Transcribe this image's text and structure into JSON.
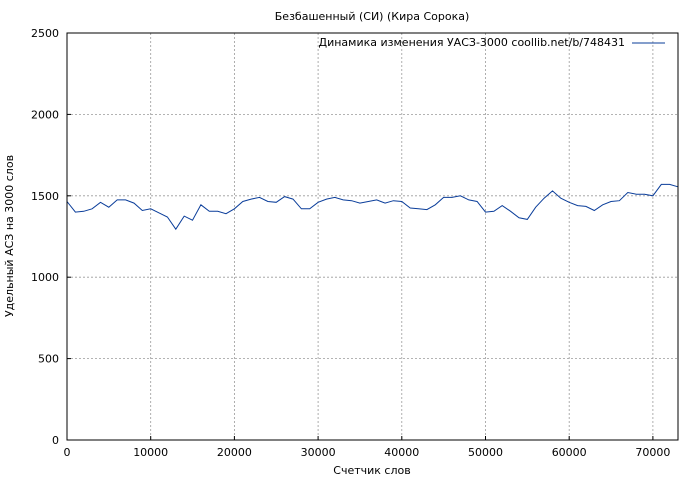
{
  "chart_data": {
    "type": "line",
    "title": "Безбашенный (СИ) (Кира Сорока)",
    "xlabel": "Счетчик слов",
    "ylabel": "Удельный АСЗ на 3000 слов",
    "xlim": [
      0,
      73000
    ],
    "ylim": [
      0,
      2500
    ],
    "xticks": [
      0,
      10000,
      20000,
      30000,
      40000,
      50000,
      60000,
      70000
    ],
    "yticks": [
      0,
      500,
      1000,
      1500,
      2000,
      2500
    ],
    "grid": true,
    "legend_position": "top-right",
    "series": [
      {
        "name": "Динамика изменения УАСЗ-3000 coollib.net/b/748431",
        "color": "#0a3d9a",
        "x": [
          0,
          1000,
          2000,
          3000,
          4000,
          5000,
          6000,
          7000,
          8000,
          9000,
          10000,
          11000,
          12000,
          13000,
          14000,
          15000,
          16000,
          17000,
          18000,
          19000,
          20000,
          21000,
          22000,
          23000,
          24000,
          25000,
          26000,
          27000,
          28000,
          29000,
          30000,
          31000,
          32000,
          33000,
          34000,
          35000,
          36000,
          37000,
          38000,
          39000,
          40000,
          41000,
          42000,
          43000,
          44000,
          45000,
          46000,
          47000,
          48000,
          49000,
          50000,
          51000,
          52000,
          53000,
          54000,
          55000,
          56000,
          57000,
          58000,
          59000,
          60000,
          61000,
          62000,
          63000,
          64000,
          65000,
          66000,
          67000,
          68000,
          69000,
          70000,
          71000,
          72000,
          73000
        ],
        "y": [
          1465,
          1400,
          1405,
          1420,
          1460,
          1430,
          1475,
          1475,
          1455,
          1410,
          1420,
          1395,
          1370,
          1295,
          1375,
          1350,
          1445,
          1405,
          1405,
          1390,
          1420,
          1465,
          1480,
          1490,
          1465,
          1460,
          1495,
          1480,
          1420,
          1420,
          1460,
          1480,
          1490,
          1475,
          1470,
          1455,
          1465,
          1475,
          1455,
          1470,
          1465,
          1425,
          1420,
          1415,
          1445,
          1490,
          1490,
          1500,
          1475,
          1465,
          1400,
          1405,
          1440,
          1405,
          1365,
          1355,
          1430,
          1485,
          1530,
          1485,
          1460,
          1440,
          1435,
          1410,
          1445,
          1465,
          1470,
          1520,
          1510,
          1510,
          1500,
          1570,
          1570,
          1555
        ]
      }
    ]
  }
}
